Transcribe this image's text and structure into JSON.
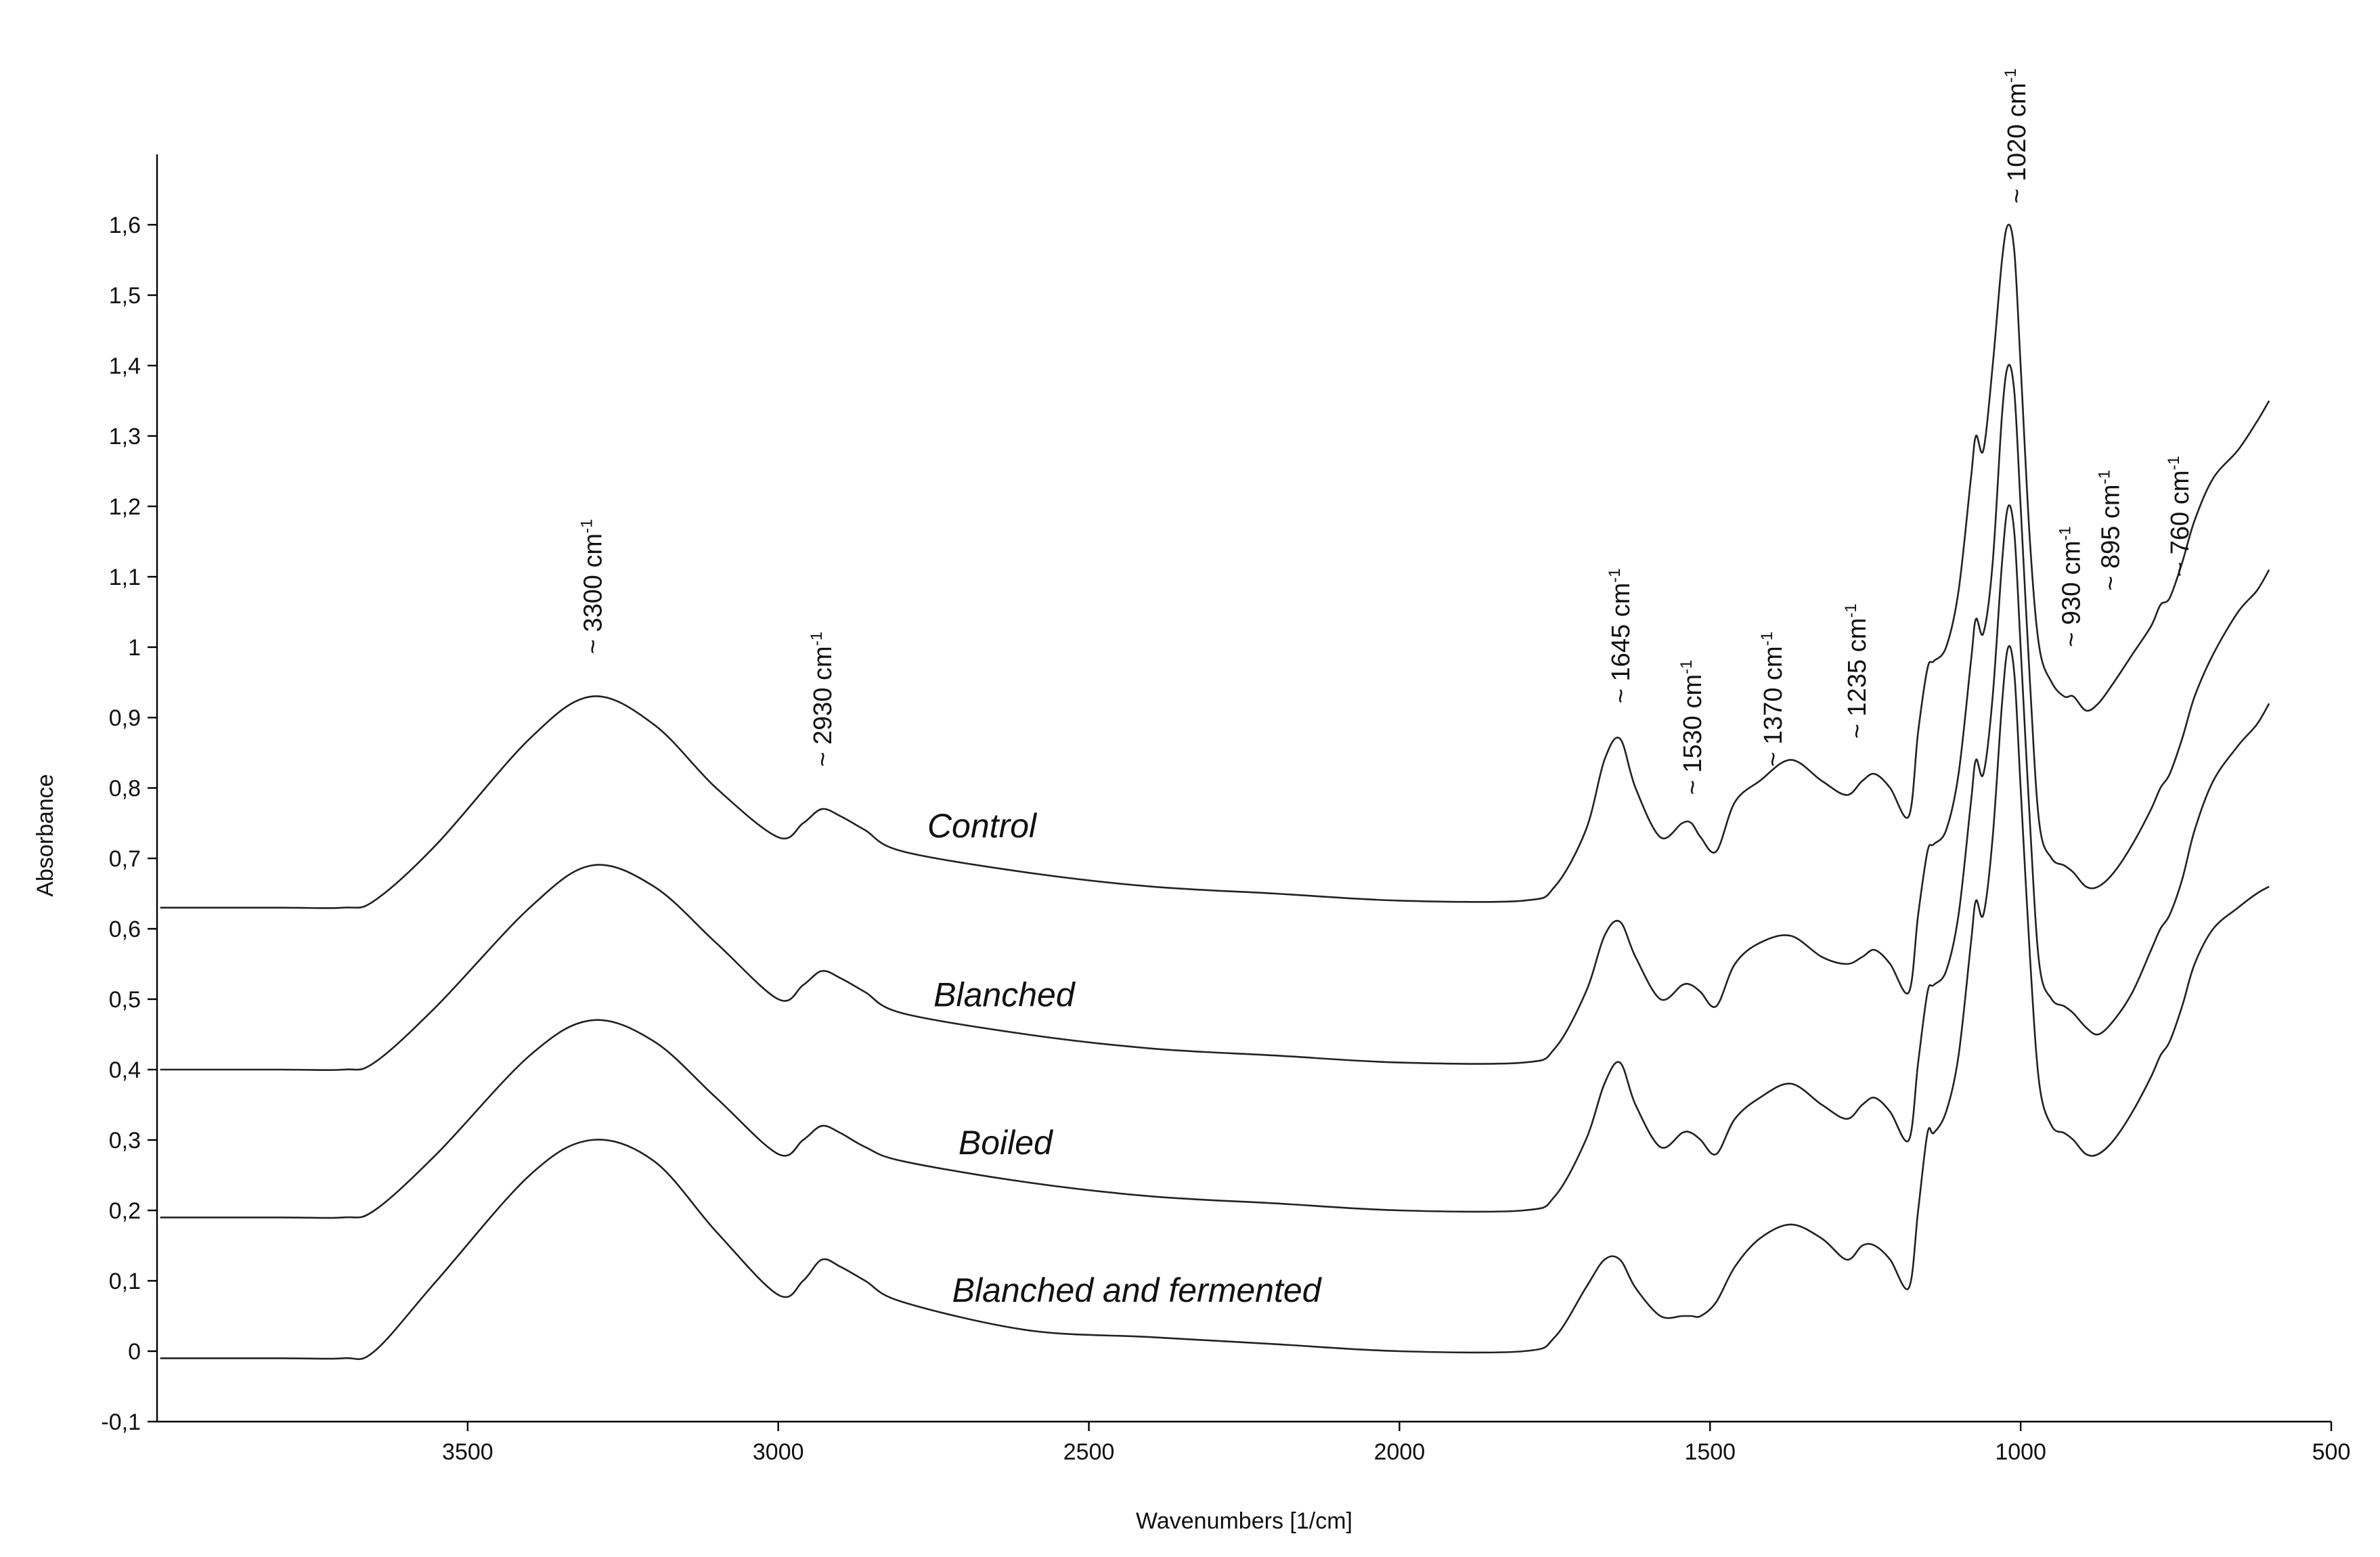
{
  "chart_data": {
    "type": "line",
    "xlabel": "Wavenumbers [1/cm]",
    "ylabel": "Absorbance",
    "xlim": [
      4000,
      500
    ],
    "ylim": [
      -0.1,
      1.7
    ],
    "x_ticks": [
      3500,
      3000,
      2500,
      2000,
      1500,
      1000,
      500
    ],
    "x_tick_labels": [
      "3500",
      "3000",
      "2500",
      "2000",
      "1500",
      "1000",
      "500"
    ],
    "y_ticks": [
      -0.1,
      0,
      0.1,
      0.2,
      0.3,
      0.4,
      0.5,
      0.6,
      0.7,
      0.8,
      0.9,
      1,
      1.1,
      1.2,
      1.3,
      1.4,
      1.5,
      1.6
    ],
    "y_tick_labels": [
      "-0,1",
      "0",
      "0,1",
      "0,2",
      "0,3",
      "0,4",
      "0,5",
      "0,6",
      "0,7",
      "0,8",
      "0,9",
      "1",
      "1,1",
      "1,2",
      "1,3",
      "1,4",
      "1,5",
      "1,6"
    ],
    "peak_annotations": [
      {
        "text": "~ 3300 cm",
        "sup": "-1",
        "x": 3300,
        "y": 0.99
      },
      {
        "text": "~ 2930 cm",
        "sup": "-1",
        "x": 2930,
        "y": 0.83
      },
      {
        "text": "~ 1645 cm",
        "sup": "-1",
        "x": 1645,
        "y": 0.92
      },
      {
        "text": "~ 1530 cm",
        "sup": "-1",
        "x": 1530,
        "y": 0.79
      },
      {
        "text": "~ 1370 cm",
        "sup": "-1",
        "x": 1400,
        "y": 0.83
      },
      {
        "text": "~ 1235 cm",
        "sup": "-1",
        "x": 1265,
        "y": 0.87
      },
      {
        "text": "~ 1020 cm",
        "sup": "-1",
        "x": 1008,
        "y": 1.63
      },
      {
        "text": "~ 930 cm",
        "sup": "-1",
        "x": 920,
        "y": 1.0
      },
      {
        "text": "~ 895 cm",
        "sup": "-1",
        "x": 857,
        "y": 1.08
      },
      {
        "text": "~ 760 cm",
        "sup": "-1",
        "x": 745,
        "y": 1.1
      }
    ],
    "series": [
      {
        "name": "Control",
        "label_pos": [
          2760,
          0.73
        ],
        "x": [
          3995,
          3800,
          3700,
          3650,
          3550,
          3400,
          3300,
          3200,
          3100,
          3000,
          2960,
          2930,
          2900,
          2860,
          2800,
          2600,
          2400,
          2200,
          2000,
          1800,
          1750,
          1700,
          1670,
          1645,
          1620,
          1580,
          1545,
          1530,
          1515,
          1490,
          1460,
          1420,
          1370,
          1320,
          1280,
          1255,
          1235,
          1210,
          1180,
          1165,
          1150,
          1140,
          1120,
          1100,
          1080,
          1072,
          1060,
          1045,
          1030,
          1020,
          1010,
          1000,
          985,
          970,
          950,
          930,
          915,
          895,
          875,
          850,
          820,
          790,
          775,
          760,
          740,
          720,
          690,
          650,
          620,
          600
        ],
        "y": [
          0.63,
          0.63,
          0.63,
          0.64,
          0.72,
          0.87,
          0.93,
          0.89,
          0.8,
          0.73,
          0.75,
          0.77,
          0.76,
          0.74,
          0.71,
          0.68,
          0.66,
          0.65,
          0.64,
          0.64,
          0.66,
          0.74,
          0.84,
          0.87,
          0.8,
          0.73,
          0.75,
          0.75,
          0.73,
          0.71,
          0.78,
          0.81,
          0.84,
          0.81,
          0.79,
          0.81,
          0.82,
          0.8,
          0.76,
          0.88,
          0.97,
          0.98,
          1.0,
          1.08,
          1.24,
          1.3,
          1.28,
          1.4,
          1.55,
          1.6,
          1.56,
          1.4,
          1.15,
          1.0,
          0.95,
          0.93,
          0.93,
          0.91,
          0.92,
          0.95,
          0.99,
          1.03,
          1.06,
          1.07,
          1.12,
          1.18,
          1.24,
          1.28,
          1.32,
          1.35
        ]
      },
      {
        "name": "Blanched",
        "label_pos": [
          2750,
          0.49
        ],
        "x": [
          3995,
          3800,
          3700,
          3650,
          3550,
          3400,
          3300,
          3200,
          3100,
          3000,
          2960,
          2930,
          2900,
          2860,
          2800,
          2600,
          2400,
          2200,
          2000,
          1800,
          1750,
          1700,
          1670,
          1645,
          1620,
          1580,
          1545,
          1530,
          1515,
          1490,
          1460,
          1420,
          1370,
          1320,
          1280,
          1255,
          1235,
          1210,
          1180,
          1165,
          1150,
          1140,
          1120,
          1100,
          1080,
          1072,
          1060,
          1045,
          1030,
          1020,
          1010,
          1000,
          985,
          970,
          950,
          930,
          915,
          895,
          875,
          850,
          820,
          790,
          775,
          760,
          740,
          720,
          690,
          650,
          620,
          600
        ],
        "y": [
          0.4,
          0.4,
          0.4,
          0.41,
          0.49,
          0.63,
          0.69,
          0.66,
          0.58,
          0.5,
          0.52,
          0.54,
          0.53,
          0.51,
          0.48,
          0.45,
          0.43,
          0.42,
          0.41,
          0.41,
          0.43,
          0.51,
          0.59,
          0.61,
          0.56,
          0.5,
          0.52,
          0.52,
          0.51,
          0.49,
          0.55,
          0.58,
          0.59,
          0.56,
          0.55,
          0.56,
          0.57,
          0.55,
          0.51,
          0.62,
          0.71,
          0.72,
          0.74,
          0.82,
          0.98,
          1.04,
          1.02,
          1.12,
          1.33,
          1.4,
          1.36,
          1.2,
          0.95,
          0.75,
          0.7,
          0.69,
          0.68,
          0.66,
          0.66,
          0.68,
          0.72,
          0.77,
          0.8,
          0.82,
          0.87,
          0.93,
          0.99,
          1.05,
          1.08,
          1.11
        ]
      },
      {
        "name": "Boiled",
        "label_pos": [
          2710,
          0.28
        ],
        "x": [
          3995,
          3800,
          3700,
          3650,
          3550,
          3400,
          3300,
          3200,
          3100,
          3000,
          2960,
          2930,
          2900,
          2860,
          2800,
          2600,
          2400,
          2200,
          2000,
          1800,
          1750,
          1700,
          1670,
          1645,
          1620,
          1580,
          1545,
          1530,
          1515,
          1490,
          1460,
          1420,
          1370,
          1320,
          1280,
          1255,
          1235,
          1210,
          1180,
          1165,
          1150,
          1140,
          1120,
          1100,
          1080,
          1072,
          1060,
          1045,
          1030,
          1020,
          1010,
          1000,
          985,
          970,
          950,
          930,
          915,
          895,
          875,
          850,
          820,
          790,
          775,
          760,
          740,
          720,
          690,
          650,
          620,
          600
        ],
        "y": [
          0.19,
          0.19,
          0.19,
          0.2,
          0.28,
          0.42,
          0.47,
          0.44,
          0.36,
          0.28,
          0.3,
          0.32,
          0.31,
          0.29,
          0.27,
          0.24,
          0.22,
          0.21,
          0.2,
          0.2,
          0.22,
          0.3,
          0.38,
          0.41,
          0.35,
          0.29,
          0.31,
          0.31,
          0.3,
          0.28,
          0.33,
          0.36,
          0.38,
          0.35,
          0.33,
          0.35,
          0.36,
          0.34,
          0.3,
          0.41,
          0.51,
          0.52,
          0.54,
          0.62,
          0.78,
          0.84,
          0.82,
          0.93,
          1.12,
          1.2,
          1.16,
          1.0,
          0.75,
          0.55,
          0.5,
          0.49,
          0.48,
          0.46,
          0.45,
          0.47,
          0.51,
          0.57,
          0.6,
          0.62,
          0.67,
          0.74,
          0.81,
          0.86,
          0.89,
          0.92
        ]
      },
      {
        "name": "Blanched and fermented",
        "label_pos": [
          2720,
          0.07
        ],
        "x": [
          3995,
          3800,
          3700,
          3650,
          3550,
          3400,
          3300,
          3200,
          3100,
          3000,
          2960,
          2930,
          2900,
          2860,
          2800,
          2600,
          2400,
          2200,
          2000,
          1800,
          1750,
          1700,
          1670,
          1645,
          1620,
          1580,
          1545,
          1530,
          1515,
          1490,
          1460,
          1420,
          1370,
          1320,
          1280,
          1255,
          1235,
          1210,
          1180,
          1165,
          1150,
          1140,
          1120,
          1100,
          1080,
          1072,
          1060,
          1045,
          1030,
          1020,
          1010,
          1000,
          985,
          970,
          950,
          930,
          915,
          895,
          875,
          850,
          820,
          790,
          775,
          760,
          740,
          720,
          690,
          650,
          620,
          600
        ],
        "y": [
          -0.01,
          -0.01,
          -0.01,
          0.0,
          0.1,
          0.25,
          0.3,
          0.27,
          0.17,
          0.08,
          0.1,
          0.13,
          0.12,
          0.1,
          0.07,
          0.03,
          0.02,
          0.01,
          0.0,
          0.0,
          0.02,
          0.09,
          0.13,
          0.13,
          0.09,
          0.05,
          0.05,
          0.05,
          0.05,
          0.07,
          0.12,
          0.16,
          0.18,
          0.16,
          0.13,
          0.15,
          0.15,
          0.13,
          0.09,
          0.2,
          0.31,
          0.31,
          0.34,
          0.42,
          0.58,
          0.64,
          0.62,
          0.73,
          0.92,
          1.0,
          0.96,
          0.8,
          0.56,
          0.38,
          0.32,
          0.31,
          0.3,
          0.28,
          0.28,
          0.3,
          0.34,
          0.39,
          0.42,
          0.44,
          0.49,
          0.55,
          0.6,
          0.63,
          0.65,
          0.66
        ]
      }
    ]
  }
}
